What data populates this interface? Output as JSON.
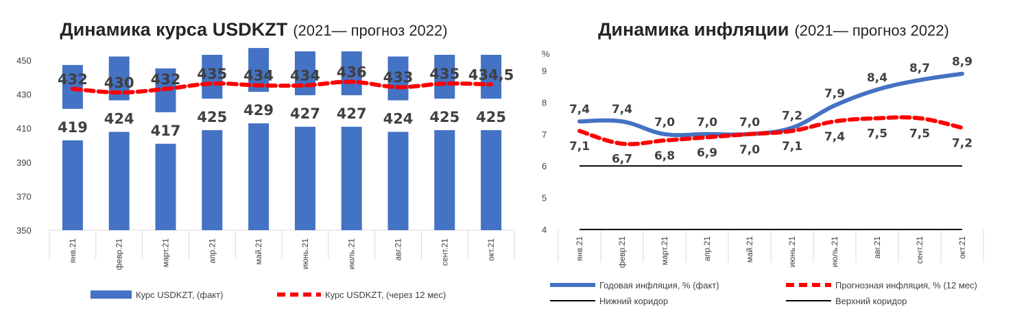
{
  "chart_data": [
    {
      "type": "bar",
      "title": "Динамика курса USDKZT",
      "subtitle": "(2021— прогноз 2022)",
      "categories": [
        "янв.21",
        "февр.21",
        "март.21",
        "апр.21",
        "май.21",
        "июнь.21",
        "июль.21",
        "авг.21",
        "сент.21",
        "окт.21"
      ],
      "yticks": [
        "450",
        "430",
        "410",
        "390",
        "370",
        "350"
      ],
      "ylim": [
        350,
        450
      ],
      "grid": false,
      "legend_position": "bottom",
      "series": [
        {
          "name": "Курс USDKZT, (факт)",
          "kind": "bar",
          "color": "#4472C4",
          "values": [
            419,
            424,
            417,
            425,
            429,
            427,
            427,
            424,
            425,
            425
          ],
          "labels": [
            "419",
            "424",
            "417",
            "425",
            "429",
            "427",
            "427",
            "424",
            "425",
            "425"
          ]
        },
        {
          "name": "Курс USDKZT, (через 12 мес)",
          "kind": "dashed-line",
          "color": "#FF0000",
          "values": [
            432,
            430,
            432,
            435,
            434,
            434,
            436,
            433,
            435,
            434.5
          ],
          "labels": [
            "432",
            "430",
            "432",
            "435",
            "434",
            "434",
            "436",
            "433",
            "435",
            "434,5"
          ]
        }
      ]
    },
    {
      "type": "line",
      "title": "Динамика инфляции",
      "subtitle": "(2021— прогноз 2022)",
      "ylabel": "%",
      "categories": [
        "янв.21",
        "февр.21",
        "март.21",
        "апр.21",
        "май.21",
        "июнь.21",
        "июль.21",
        "авг.21",
        "сент.21",
        "окт.21"
      ],
      "yticks": [
        "9",
        "8",
        "7",
        "6",
        "5",
        "4"
      ],
      "ylim": [
        4,
        9
      ],
      "grid": false,
      "legend_position": "bottom",
      "series": [
        {
          "name": "Годовая инфляция, % (факт)",
          "kind": "line",
          "color": "#4472C4",
          "values": [
            7.4,
            7.4,
            7.0,
            7.0,
            7.0,
            7.2,
            7.9,
            8.4,
            8.7,
            8.9
          ],
          "labels": [
            "7,4",
            "7,4",
            "7,0",
            "7,0",
            "7,0",
            "7,2",
            "7,9",
            "8,4",
            "8,7",
            "8,9"
          ]
        },
        {
          "name": "Прогнозная инфляция, % (12 мес)",
          "kind": "dashed-line",
          "color": "#FF0000",
          "values": [
            7.1,
            6.7,
            6.8,
            6.9,
            7.0,
            7.1,
            7.4,
            7.5,
            7.5,
            7.2
          ],
          "labels": [
            "7,1",
            "6,7",
            "6,8",
            "6,9",
            "7,0",
            "7,1",
            "7,4",
            "7,5",
            "7,5",
            "7,2"
          ]
        },
        {
          "name": "Нижний коридор",
          "kind": "line",
          "color": "#000000",
          "values": [
            4,
            4,
            4,
            4,
            4,
            4,
            4,
            4,
            4,
            4
          ]
        },
        {
          "name": "Верхний коридор",
          "kind": "line",
          "color": "#000000",
          "values": [
            6,
            6,
            6,
            6,
            6,
            6,
            6,
            6,
            6,
            6
          ]
        }
      ]
    }
  ]
}
